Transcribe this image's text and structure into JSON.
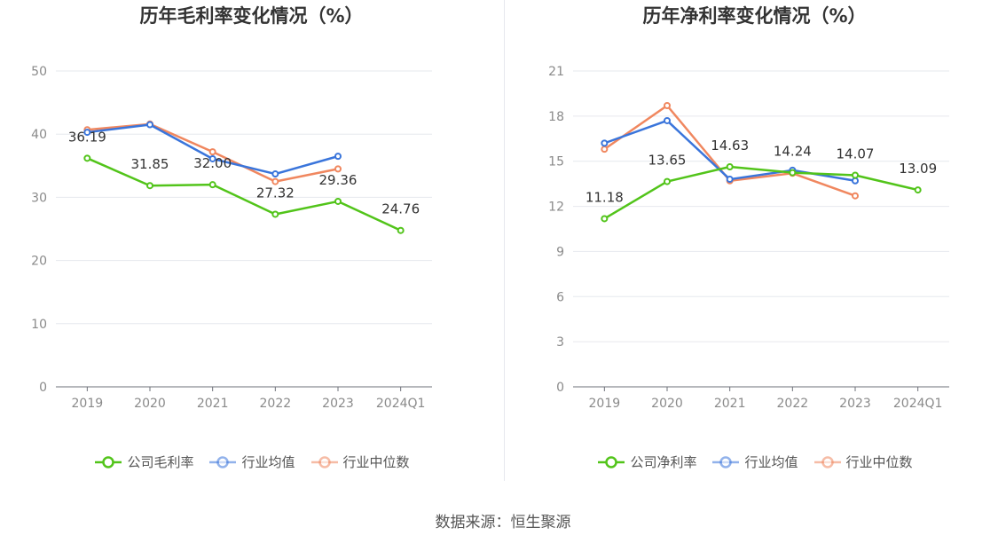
{
  "footer": {
    "source": "数据来源：恒生聚源"
  },
  "chart_data": [
    {
      "type": "line",
      "title": "历年毛利率变化情况（%）",
      "xlabel": "",
      "ylabel": "",
      "categories": [
        "2019",
        "2020",
        "2021",
        "2022",
        "2023",
        "2024Q1"
      ],
      "ylim": [
        0,
        50
      ],
      "yticks": [
        0,
        10,
        20,
        30,
        40,
        50
      ],
      "grid": true,
      "legend_position": "bottom",
      "series": [
        {
          "name": "公司毛利率",
          "color": "#52c41a",
          "values": [
            36.19,
            31.85,
            32.0,
            27.32,
            29.36,
            24.76
          ],
          "labels": [
            "36.19",
            "31.85",
            "32.00",
            "27.32",
            "29.36",
            "24.76"
          ]
        },
        {
          "name": "行业均值",
          "color": "#3a75db",
          "values": [
            40.3,
            41.5,
            36.1,
            33.7,
            36.5,
            null
          ]
        },
        {
          "name": "行业中位数",
          "color": "#f0875f",
          "values": [
            40.7,
            41.6,
            37.2,
            32.5,
            34.5,
            null
          ]
        }
      ]
    },
    {
      "type": "line",
      "title": "历年净利率变化情况（%）",
      "xlabel": "",
      "ylabel": "",
      "categories": [
        "2019",
        "2020",
        "2021",
        "2022",
        "2023",
        "2024Q1"
      ],
      "ylim": [
        0,
        21
      ],
      "yticks": [
        0,
        3,
        6,
        9,
        12,
        15,
        18,
        21
      ],
      "grid": true,
      "legend_position": "bottom",
      "series": [
        {
          "name": "公司净利率",
          "color": "#52c41a",
          "values": [
            11.18,
            13.65,
            14.63,
            14.24,
            14.07,
            13.09
          ],
          "labels": [
            "11.18",
            "13.65",
            "14.63",
            "14.24",
            "14.07",
            "13.09"
          ]
        },
        {
          "name": "行业均值",
          "color": "#3a75db",
          "values": [
            16.2,
            17.7,
            13.8,
            14.4,
            13.7,
            null
          ]
        },
        {
          "name": "行业中位数",
          "color": "#f0875f",
          "values": [
            15.8,
            18.7,
            13.7,
            14.2,
            12.7,
            null
          ]
        }
      ]
    }
  ]
}
